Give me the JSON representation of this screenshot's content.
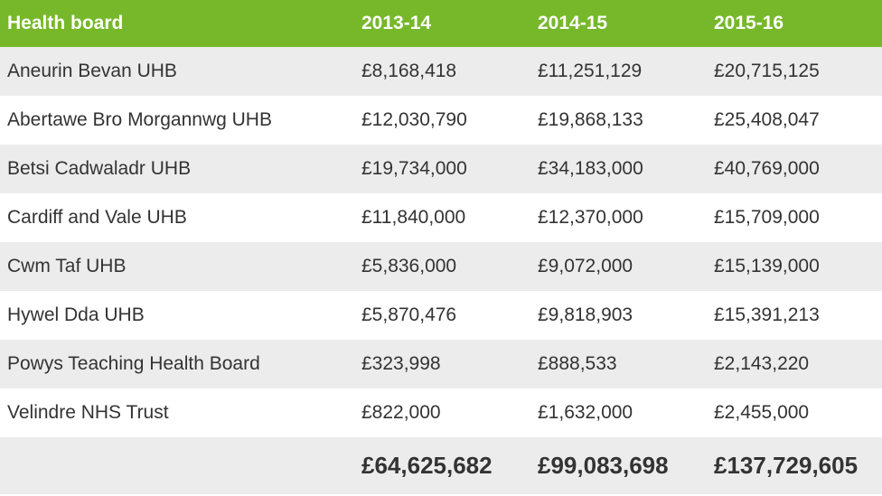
{
  "table": {
    "headers": [
      "Health board",
      "2013-14",
      "2014-15",
      "2015-16"
    ],
    "rows": [
      [
        "Aneurin Bevan UHB",
        "£8,168,418",
        "£11,251,129",
        "£20,715,125"
      ],
      [
        "Abertawe Bro Morgannwg UHB",
        "£12,030,790",
        "£19,868,133",
        "£25,408,047"
      ],
      [
        "Betsi Cadwaladr UHB",
        "£19,734,000",
        "£34,183,000",
        "£40,769,000"
      ],
      [
        "Cardiff and Vale UHB",
        "£11,840,000",
        "£12,370,000",
        "£15,709,000"
      ],
      [
        "Cwm Taf UHB",
        "£5,836,000",
        "£9,072,000",
        "£15,139,000"
      ],
      [
        "Hywel Dda UHB",
        "£5,870,476",
        "£9,818,903",
        "£15,391,213"
      ],
      [
        "Powys Teaching Health Board",
        "£323,998",
        "£888,533",
        "£2,143,220"
      ],
      [
        "Velindre NHS Trust",
        "£822,000",
        "£1,632,000",
        "£2,455,000"
      ]
    ],
    "totals": [
      "",
      "£64,625,682",
      "£99,083,698",
      "£137,729,605"
    ]
  },
  "colors": {
    "header_background": "#76b82a",
    "header_text": "#ffffff",
    "stripe": "#ececec",
    "body_text": "#333333"
  }
}
